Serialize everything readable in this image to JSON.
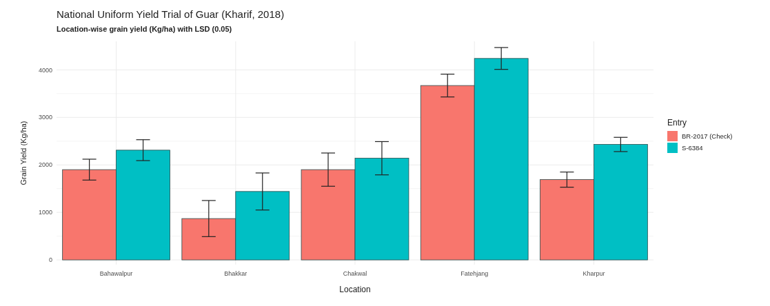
{
  "chart_data": {
    "type": "bar",
    "title": "National Uniform Yield Trial of Guar (Kharif, 2018)",
    "subtitle": "Location-wise grain yield (Kg/ha) with LSD (0.05)",
    "xlabel": "Location",
    "ylabel": "Grain Yield (Kg/ha)",
    "legend_title": "Entry",
    "categories": [
      "Bahawalpur",
      "Bhakkar",
      "Chakwal",
      "Fatehjang",
      "Kharpur"
    ],
    "series": [
      {
        "name": "BR-2017 (Check)",
        "color": "#f8766d",
        "values": [
          1900,
          870,
          1900,
          3670,
          1690
        ],
        "errors": [
          220,
          380,
          350,
          240,
          160
        ]
      },
      {
        "name": "S-6384",
        "color": "#00bfc4",
        "values": [
          2310,
          1440,
          2140,
          4240,
          2430
        ],
        "errors": [
          220,
          390,
          350,
          230,
          150
        ]
      }
    ],
    "ylim": [
      -100,
      4600
    ],
    "yticks": [
      0,
      1000,
      2000,
      3000,
      4000
    ],
    "grid": true,
    "legend": "right"
  }
}
